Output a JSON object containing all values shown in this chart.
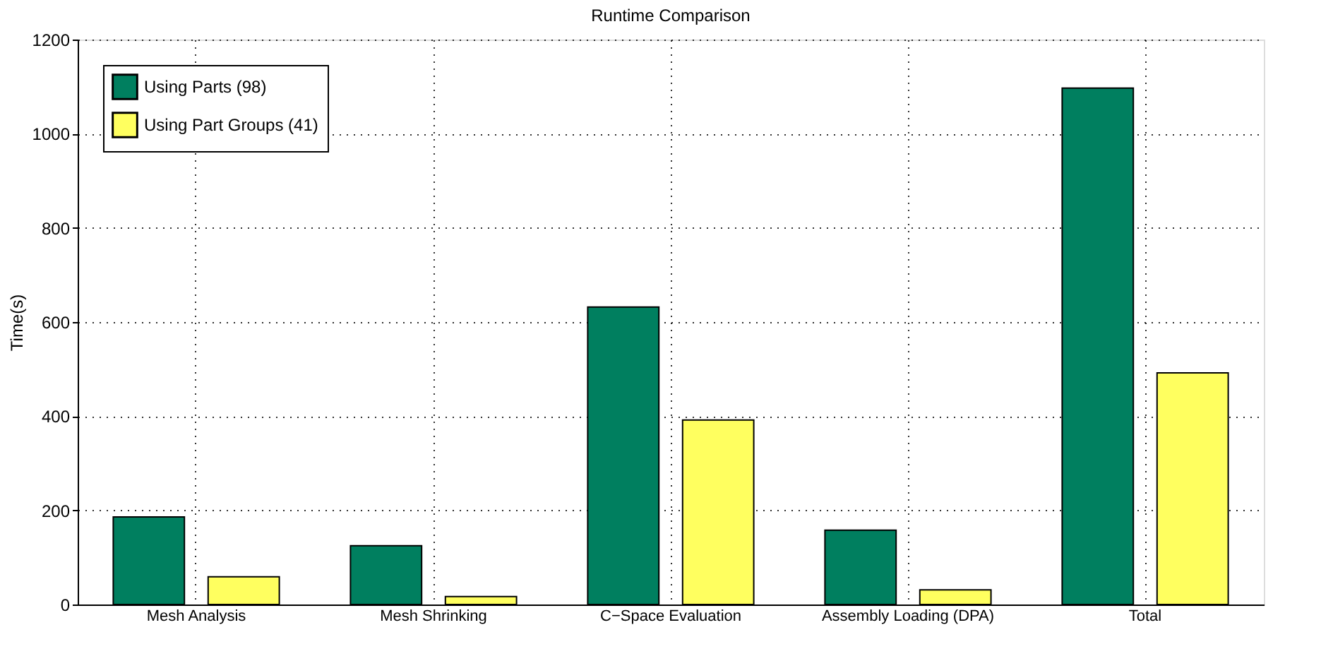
{
  "chart_data": {
    "type": "bar",
    "title": "Runtime Comparison",
    "ylabel": "Time(s)",
    "categories": [
      "Mesh Analysis",
      "Mesh Shrinking",
      "C−Space Evaluation",
      "Assembly Loading (DPA)",
      "Total"
    ],
    "series": [
      {
        "name": "Using Parts (98)",
        "color": "#007f5f",
        "values": [
          186,
          125,
          632,
          158,
          1097
        ]
      },
      {
        "name": "Using Part Groups (41)",
        "color": "#ffff5f",
        "values": [
          59,
          17,
          392,
          31,
          492
        ]
      }
    ],
    "ylim": [
      0,
      1200
    ],
    "yticks": [
      0,
      200,
      400,
      600,
      800,
      1000,
      1200
    ],
    "grid": true,
    "legend": "top left"
  }
}
